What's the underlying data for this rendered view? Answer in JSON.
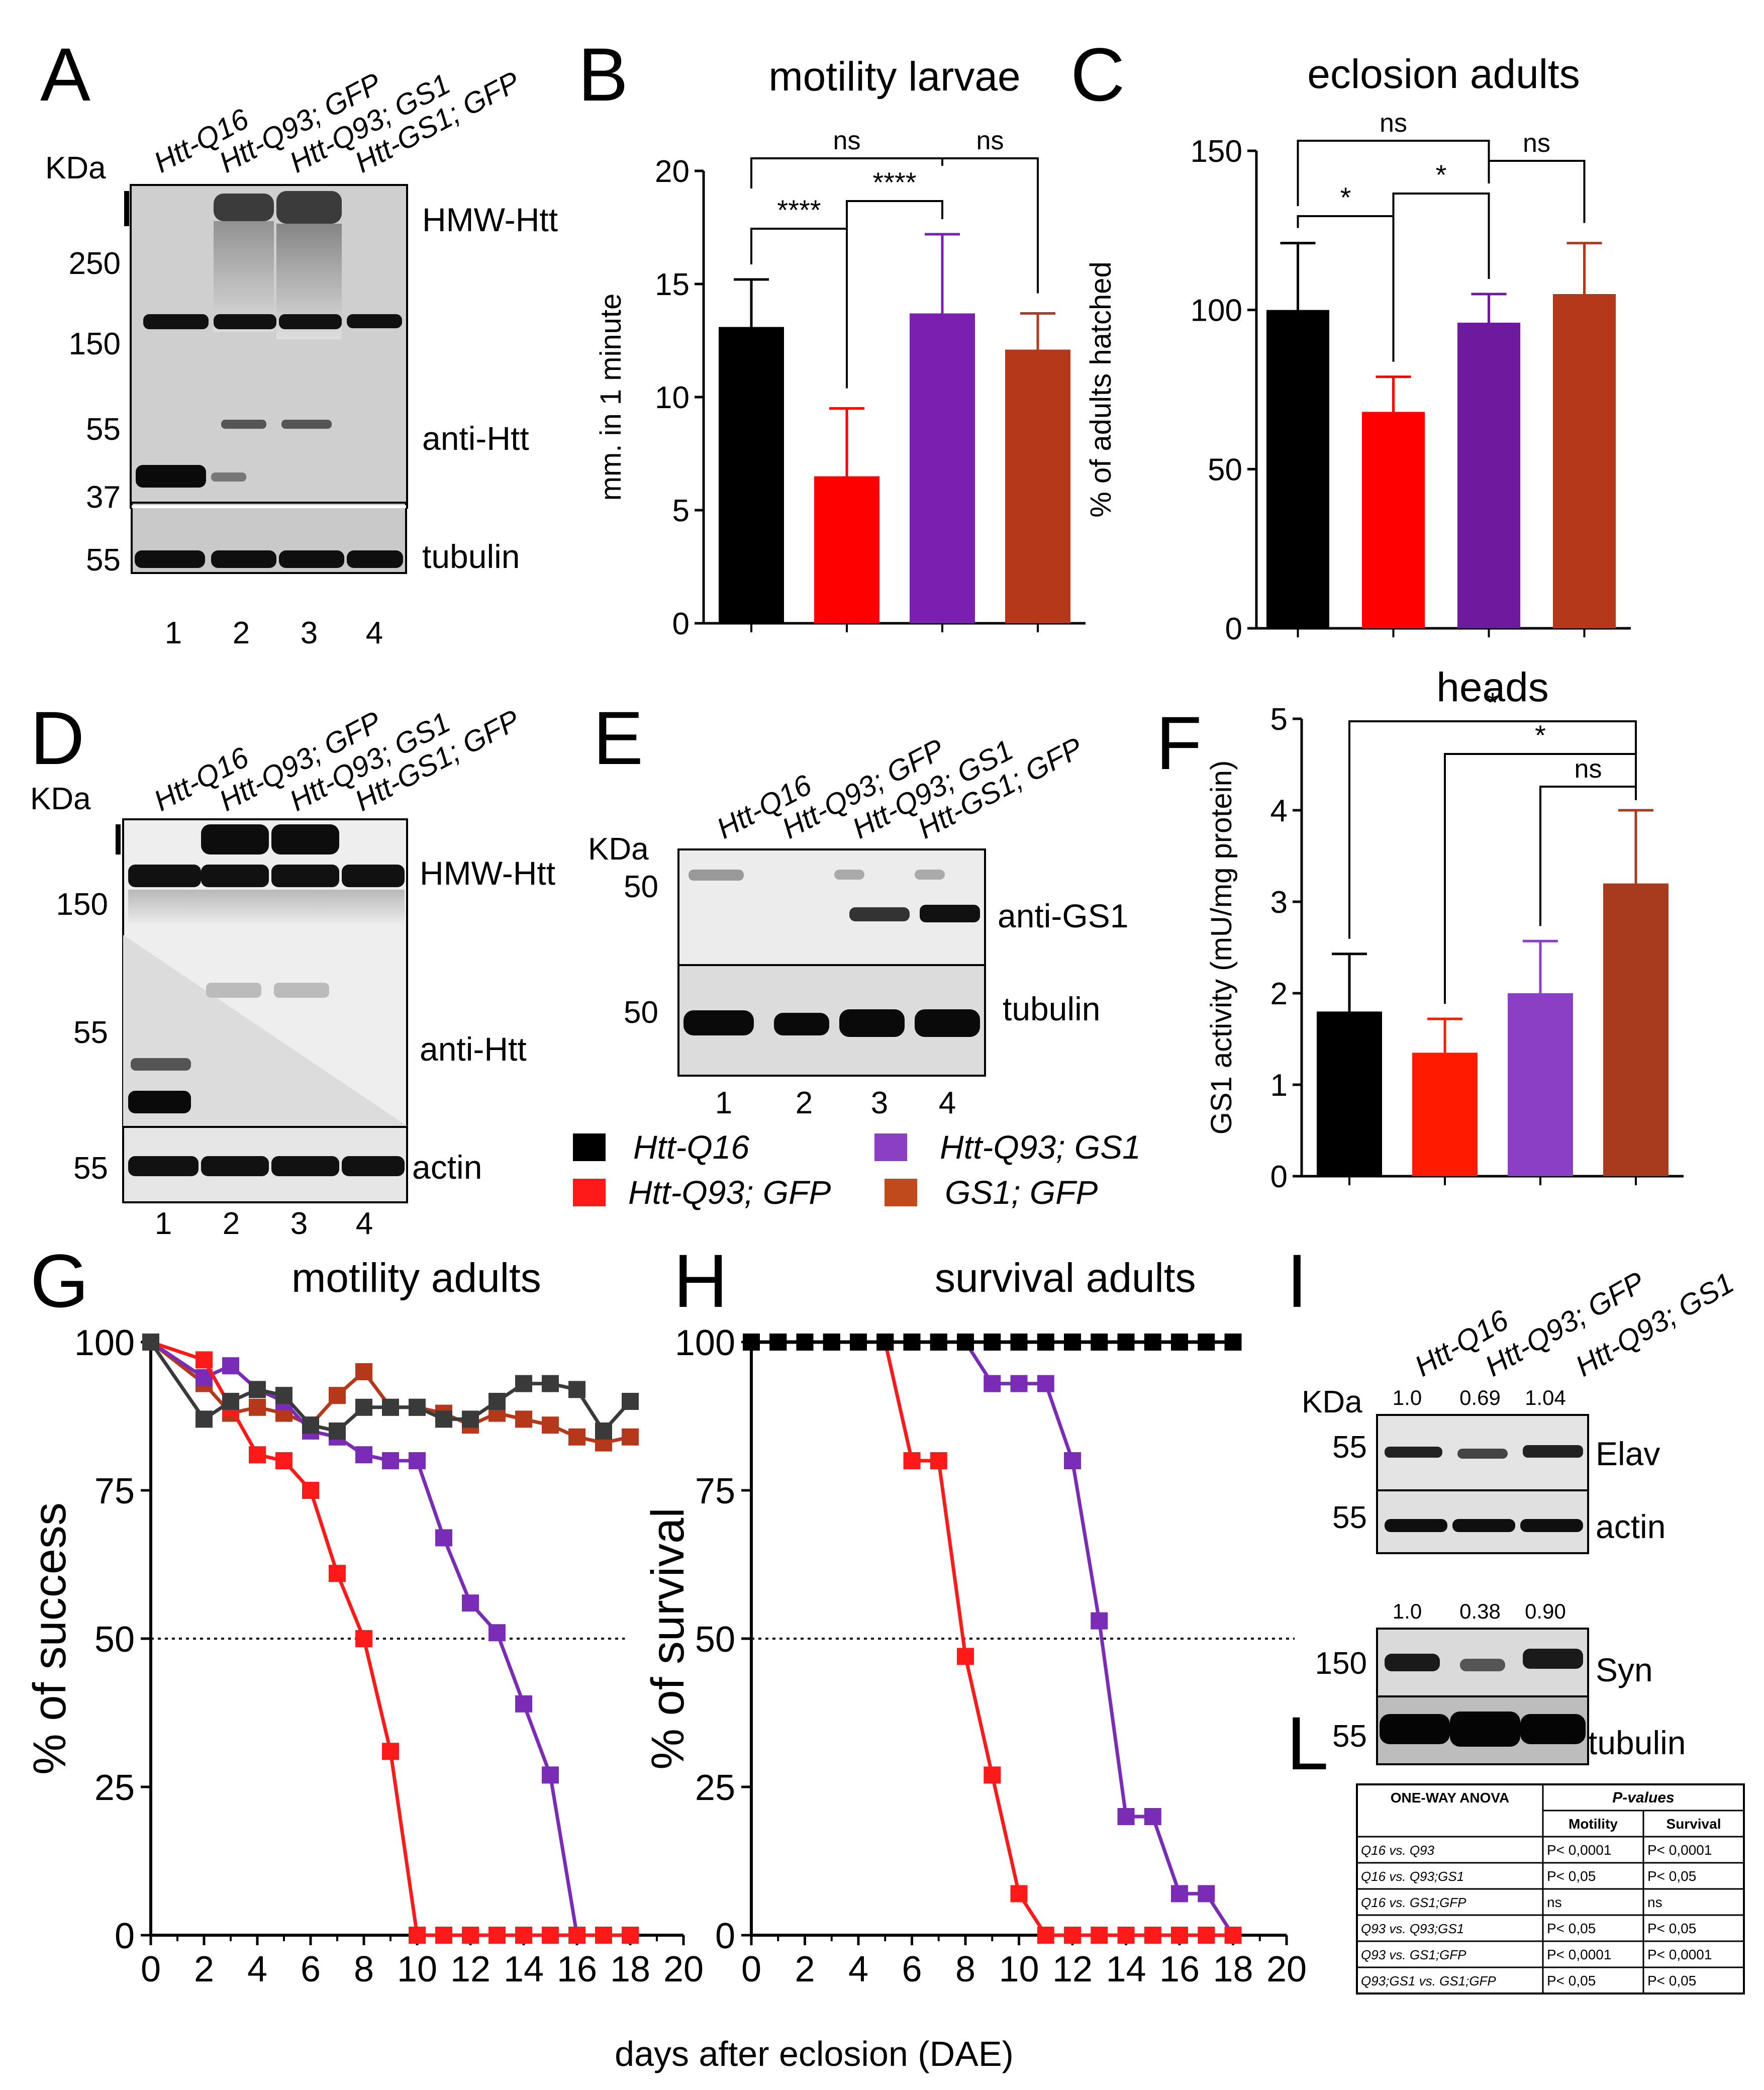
{
  "panel_letters": [
    "A",
    "B",
    "C",
    "D",
    "E",
    "F",
    "G",
    "H",
    "I",
    "L"
  ],
  "colors": {
    "q16": "#000000",
    "q93gfp": "#ff1a1a",
    "q93gs1": "#7b2cb6",
    "gs1gfp": "#b33a14",
    "q93gs1_f": "#8b3fc4"
  },
  "blotA": {
    "lanes": [
      "Htt-Q16",
      "Htt-Q93; GFP",
      "Htt-Q93; GS1",
      "Htt-GS1; GFP"
    ],
    "kda_label": "KDa",
    "markers": [
      "250",
      "150",
      "55",
      "37",
      "55"
    ],
    "labels": [
      "HMW-Htt",
      "anti-Htt",
      "tubulin"
    ],
    "lane_numbers": [
      "1",
      "2",
      "3",
      "4"
    ]
  },
  "blotD": {
    "lanes": [
      "Htt-Q16",
      "Htt-Q93; GFP",
      "Htt-Q93; GS1",
      "Htt-GS1; GFP"
    ],
    "kda_label": "KDa",
    "markers": [
      "150",
      "55",
      "55"
    ],
    "labels": [
      "HMW-Htt",
      "anti-Htt",
      "actin"
    ],
    "lane_numbers": [
      "1",
      "2",
      "3",
      "4"
    ]
  },
  "blotE": {
    "lanes": [
      "Htt-Q16",
      "Htt-Q93; GFP",
      "Htt-Q93; GS1",
      "Htt-GS1; GFP"
    ],
    "kda_label": "KDa",
    "markers": [
      "50",
      "50"
    ],
    "labels": [
      "anti-GS1",
      "tubulin"
    ],
    "lane_numbers": [
      "1",
      "2",
      "3",
      "4"
    ]
  },
  "blotI": {
    "lanes": [
      "Htt-Q16",
      "Htt-Q93; GFP",
      "Htt-Q93; GS1"
    ],
    "kda_label": "KDa",
    "elav_quant": [
      "1.0",
      "0.69",
      "1.04"
    ],
    "syn_quant": [
      "1.0",
      "0.38",
      "0.90"
    ],
    "markers": [
      "55",
      "55",
      "150",
      "55"
    ],
    "labels": [
      "Elav",
      "actin",
      "Syn",
      "tubulin"
    ]
  },
  "legend": [
    {
      "label": "Htt-Q16",
      "color": "#000000"
    },
    {
      "label": "Htt-Q93; GS1",
      "color": "#8b3fc4"
    },
    {
      "label": "Htt-Q93; GFP",
      "color": "#ff1a1a"
    },
    {
      "label": "GS1; GFP",
      "color": "#c04a1c"
    }
  ],
  "shared_xlabel": "days after eclosion (DAE)",
  "chart_data": [
    {
      "id": "B",
      "type": "bar",
      "title": "motility larvae",
      "ylabel": "mm. in 1 minute",
      "ylim": [
        0,
        20
      ],
      "yticks": [
        0,
        5,
        10,
        15,
        20
      ],
      "categories": [
        "Htt-Q16",
        "Htt-Q93; GFP",
        "Htt-Q93; GS1",
        "GS1; GFP"
      ],
      "values": [
        13.1,
        6.5,
        13.7,
        12.1
      ],
      "errors": [
        2.1,
        3.0,
        3.5,
        1.6
      ],
      "colors": [
        "#000000",
        "#ff0000",
        "#7b1fb0",
        "#b5381a"
      ],
      "significance": [
        {
          "a": 0,
          "b": 1,
          "label": "****"
        },
        {
          "a": 1,
          "b": 2,
          "label": "****"
        },
        {
          "a": 0,
          "b": 2,
          "label": "ns"
        },
        {
          "a": 2,
          "b": 3,
          "label": "ns"
        }
      ]
    },
    {
      "id": "C",
      "type": "bar",
      "title": "eclosion adults",
      "ylabel": "% of adults hatched",
      "ylim": [
        0,
        150
      ],
      "yticks": [
        0,
        50,
        100,
        150
      ],
      "categories": [
        "Htt-Q16",
        "Htt-Q93; GFP",
        "Htt-Q93; GS1",
        "GS1; GFP"
      ],
      "values": [
        100,
        68,
        96,
        105
      ],
      "errors": [
        21,
        11,
        9,
        16
      ],
      "colors": [
        "#000000",
        "#ff0000",
        "#6d1a9e",
        "#b5381a"
      ],
      "significance": [
        {
          "a": 0,
          "b": 1,
          "label": "*"
        },
        {
          "a": 1,
          "b": 2,
          "label": "*"
        },
        {
          "a": 0,
          "b": 2,
          "label": "ns"
        },
        {
          "a": 2,
          "b": 3,
          "label": "ns"
        }
      ]
    },
    {
      "id": "F",
      "type": "bar",
      "title": "heads",
      "ylabel": "GS1 activity (mU/mg protein)",
      "ylim": [
        0,
        5
      ],
      "yticks": [
        0,
        1,
        2,
        3,
        4,
        5
      ],
      "categories": [
        "Htt-Q16",
        "Htt-Q93; GFP",
        "Htt-Q93; GS1",
        "GS1; GFP"
      ],
      "values": [
        1.8,
        1.35,
        2.0,
        3.2
      ],
      "errors": [
        0.63,
        0.37,
        0.57,
        0.8
      ],
      "colors": [
        "#000000",
        "#ff1a00",
        "#8b3fc4",
        "#a83a1e"
      ],
      "significance": [
        {
          "a": 0,
          "b": 3,
          "label": "*"
        },
        {
          "a": 1,
          "b": 3,
          "label": "*"
        },
        {
          "a": 2,
          "b": 3,
          "label": "ns"
        }
      ]
    },
    {
      "id": "G",
      "type": "line",
      "title": "motility adults",
      "ylabel": "% of success",
      "xlim": [
        0,
        20
      ],
      "ylim": [
        0,
        100
      ],
      "xticks": [
        0,
        2,
        4,
        6,
        8,
        10,
        12,
        14,
        16,
        18,
        20
      ],
      "yticks": [
        0,
        25,
        50,
        75,
        100
      ],
      "reference_line": 50,
      "series": [
        {
          "name": "GS1; GFP",
          "color": "#b5381a",
          "x": [
            0,
            2,
            3,
            4,
            5,
            6,
            7,
            8,
            9,
            10,
            11,
            12,
            13,
            14,
            15,
            16,
            17,
            18
          ],
          "y": [
            100,
            93,
            88,
            89,
            88,
            86,
            91,
            95,
            89,
            89,
            88,
            86,
            88,
            87,
            86,
            84,
            83,
            84
          ]
        },
        {
          "name": "Htt-Q93; GS1",
          "color": "#7b2cb6",
          "x": [
            0,
            2,
            3,
            4,
            5,
            6,
            7,
            8,
            9,
            10,
            11,
            12,
            13,
            14,
            15,
            16
          ],
          "y": [
            100,
            94,
            96,
            92,
            90,
            85,
            84,
            81,
            80,
            80,
            67,
            56,
            51,
            39,
            27,
            0
          ]
        },
        {
          "name": "Htt-Q93; GFP",
          "color": "#ff1a1a",
          "x": [
            0,
            2,
            3,
            4,
            5,
            6,
            7,
            8,
            9,
            10,
            11,
            12,
            13,
            14,
            15,
            16,
            17,
            18
          ],
          "y": [
            100,
            97,
            89,
            81,
            80,
            75,
            61,
            50,
            31,
            0,
            0,
            0,
            0,
            0,
            0,
            0,
            0,
            0
          ]
        },
        {
          "name": "Htt-Q16",
          "color": "#3a3a3a",
          "x": [
            0,
            2,
            3,
            4,
            5,
            6,
            7,
            8,
            9,
            10,
            11,
            12,
            13,
            14,
            15,
            16,
            17,
            18
          ],
          "y": [
            100,
            87,
            90,
            92,
            91,
            86,
            85,
            89,
            89,
            89,
            87,
            87,
            90,
            93,
            93,
            92,
            85,
            90
          ]
        }
      ]
    },
    {
      "id": "H",
      "type": "line",
      "title": "survival adults",
      "ylabel": "% of survival",
      "xlim": [
        0,
        20
      ],
      "ylim": [
        0,
        100
      ],
      "xticks": [
        0,
        2,
        4,
        6,
        8,
        10,
        12,
        14,
        16,
        18,
        20
      ],
      "yticks": [
        0,
        25,
        50,
        75,
        100
      ],
      "xlabel_note": "days after eclosion (DAE)",
      "reference_line": 50,
      "series": [
        {
          "name": "Htt-Q93; GS1",
          "color": "#7b2cb6",
          "x": [
            0,
            1,
            2,
            3,
            4,
            5,
            6,
            7,
            8,
            9,
            10,
            11,
            12,
            13,
            14,
            15,
            16,
            17,
            18
          ],
          "y": [
            100,
            100,
            100,
            100,
            100,
            100,
            100,
            100,
            100,
            93,
            93,
            93,
            80,
            53,
            20,
            20,
            7,
            7,
            0
          ]
        },
        {
          "name": "Htt-Q93; GFP",
          "color": "#ff1a1a",
          "x": [
            0,
            1,
            2,
            3,
            4,
            5,
            6,
            7,
            8,
            9,
            10,
            11,
            12,
            13,
            14,
            15,
            16,
            17,
            18
          ],
          "y": [
            100,
            100,
            100,
            100,
            100,
            100,
            80,
            80,
            47,
            27,
            7,
            0,
            0,
            0,
            0,
            0,
            0,
            0,
            0
          ]
        },
        {
          "name": "Htt-Q16",
          "color": "#000000",
          "x": [
            0,
            1,
            2,
            3,
            4,
            5,
            6,
            7,
            8,
            9,
            10,
            11,
            12,
            13,
            14,
            15,
            16,
            17,
            18
          ],
          "y": [
            100,
            100,
            100,
            100,
            100,
            100,
            100,
            100,
            100,
            100,
            100,
            100,
            100,
            100,
            100,
            100,
            100,
            100,
            100
          ]
        }
      ]
    },
    {
      "id": "L",
      "type": "table",
      "header": [
        "ONE-WAY ANOVA",
        "P-values"
      ],
      "subheader": [
        "",
        "Motility",
        "Survival"
      ],
      "rows": [
        [
          "Q16 vs. Q93",
          "P< 0,0001",
          "P< 0,0001"
        ],
        [
          "Q16 vs. Q93;GS1",
          "P< 0,05",
          "P< 0,05"
        ],
        [
          "Q16 vs. GS1;GFP",
          "ns",
          "ns"
        ],
        [
          "Q93 vs. Q93;GS1",
          "P< 0,05",
          "P< 0,05"
        ],
        [
          "Q93 vs. GS1;GFP",
          "P< 0,0001",
          "P< 0,0001"
        ],
        [
          "Q93;GS1 vs. GS1;GFP",
          "P< 0,05",
          "P< 0,05"
        ]
      ]
    }
  ]
}
